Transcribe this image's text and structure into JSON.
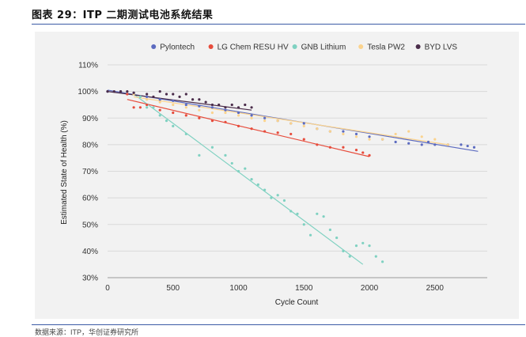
{
  "header": {
    "title": "图表 29：ITP 二期测试电池系统结果",
    "source": "数据来源：ITP，华创证券研究所"
  },
  "chart_data": {
    "type": "scatter",
    "title": "",
    "xlabel": "Cycle Count",
    "ylabel": "Estimated State of Health (%)",
    "xlim": [
      0,
      2900
    ],
    "ylim": [
      30,
      110
    ],
    "x_ticks": [
      0,
      500,
      1000,
      1500,
      2000,
      2500
    ],
    "y_ticks": [
      30,
      40,
      50,
      60,
      70,
      80,
      90,
      100,
      110
    ],
    "y_tick_labels": [
      "30%",
      "40%",
      "50%",
      "60%",
      "70%",
      "80%",
      "90%",
      "100%",
      "110%"
    ],
    "grid": "horizontal",
    "legend": "top",
    "series": [
      {
        "name": "Pylontech",
        "color": "#5c6bc0",
        "points": [
          [
            0,
            100
          ],
          [
            100,
            100
          ],
          [
            200,
            99.5
          ],
          [
            300,
            98
          ],
          [
            400,
            97
          ],
          [
            500,
            96.5
          ],
          [
            600,
            95
          ],
          [
            700,
            94.5
          ],
          [
            800,
            94
          ],
          [
            900,
            93
          ],
          [
            1000,
            92
          ],
          [
            1100,
            91
          ],
          [
            1200,
            90
          ],
          [
            1300,
            89
          ],
          [
            1400,
            88
          ],
          [
            1500,
            88
          ],
          [
            1600,
            86
          ],
          [
            1700,
            85
          ],
          [
            1800,
            85
          ],
          [
            1900,
            84
          ],
          [
            2000,
            83
          ],
          [
            2100,
            82
          ],
          [
            2200,
            81
          ],
          [
            2300,
            80.5
          ],
          [
            2400,
            80
          ],
          [
            2450,
            81
          ],
          [
            2500,
            80
          ],
          [
            2600,
            80
          ],
          [
            2700,
            80
          ],
          [
            2750,
            79.5
          ],
          [
            2800,
            79
          ]
        ],
        "trend": [
          [
            0,
            100.5
          ],
          [
            2830,
            77.5
          ]
        ]
      },
      {
        "name": "LG Chem RESU HV",
        "color": "#e74c3c",
        "points": [
          [
            150,
            99
          ],
          [
            200,
            94
          ],
          [
            250,
            94
          ],
          [
            300,
            95
          ],
          [
            400,
            93
          ],
          [
            500,
            92
          ],
          [
            600,
            91
          ],
          [
            700,
            90
          ],
          [
            800,
            89
          ],
          [
            900,
            88.5
          ],
          [
            1000,
            87
          ],
          [
            1100,
            86
          ],
          [
            1200,
            85
          ],
          [
            1300,
            84.5
          ],
          [
            1400,
            84
          ],
          [
            1500,
            82
          ],
          [
            1600,
            80
          ],
          [
            1700,
            79
          ],
          [
            1800,
            79
          ],
          [
            1900,
            78
          ],
          [
            1950,
            77
          ],
          [
            2000,
            76
          ]
        ],
        "trend": [
          [
            150,
            97
          ],
          [
            2000,
            75.5
          ]
        ]
      },
      {
        "name": "GNB Lithium",
        "color": "#7fd1c1",
        "points": [
          [
            200,
            99
          ],
          [
            250,
            98
          ],
          [
            300,
            94
          ],
          [
            350,
            94
          ],
          [
            400,
            91
          ],
          [
            450,
            89
          ],
          [
            500,
            87
          ],
          [
            600,
            84
          ],
          [
            700,
            76
          ],
          [
            800,
            79
          ],
          [
            900,
            76
          ],
          [
            950,
            73
          ],
          [
            1000,
            70
          ],
          [
            1050,
            71
          ],
          [
            1100,
            67
          ],
          [
            1150,
            65
          ],
          [
            1200,
            63
          ],
          [
            1250,
            60
          ],
          [
            1300,
            61
          ],
          [
            1350,
            59
          ],
          [
            1400,
            55
          ],
          [
            1450,
            54
          ],
          [
            1500,
            50
          ],
          [
            1550,
            46
          ],
          [
            1600,
            54
          ],
          [
            1650,
            53
          ],
          [
            1700,
            48
          ],
          [
            1750,
            45
          ],
          [
            1800,
            40
          ],
          [
            1850,
            38
          ],
          [
            1900,
            42
          ],
          [
            1950,
            43
          ],
          [
            2000,
            42
          ],
          [
            2050,
            38
          ],
          [
            2100,
            36
          ]
        ],
        "trend": [
          [
            200,
            99
          ],
          [
            1950,
            35
          ]
        ]
      },
      {
        "name": "Tesla PW2",
        "color": "#fbd38d",
        "points": [
          [
            200,
            99
          ],
          [
            300,
            97
          ],
          [
            400,
            96
          ],
          [
            500,
            95
          ],
          [
            600,
            94
          ],
          [
            700,
            93
          ],
          [
            800,
            92
          ],
          [
            900,
            92
          ],
          [
            1000,
            91
          ],
          [
            1100,
            90
          ],
          [
            1200,
            89
          ],
          [
            1300,
            89
          ],
          [
            1400,
            88
          ],
          [
            1500,
            87
          ],
          [
            1600,
            86
          ],
          [
            1700,
            85
          ],
          [
            1800,
            84
          ],
          [
            1900,
            83
          ],
          [
            2000,
            82
          ],
          [
            2100,
            82
          ],
          [
            2200,
            84
          ],
          [
            2300,
            85
          ],
          [
            2400,
            83
          ],
          [
            2500,
            82
          ],
          [
            2600,
            80
          ]
        ],
        "trend": [
          [
            200,
            98
          ],
          [
            2600,
            80
          ]
        ]
      },
      {
        "name": "BYD LVS",
        "color": "#4a2c4a",
        "points": [
          [
            0,
            100
          ],
          [
            50,
            100
          ],
          [
            100,
            100
          ],
          [
            150,
            100
          ],
          [
            200,
            99.5
          ],
          [
            300,
            99
          ],
          [
            350,
            98
          ],
          [
            400,
            100
          ],
          [
            450,
            99
          ],
          [
            500,
            99
          ],
          [
            550,
            98
          ],
          [
            600,
            99
          ],
          [
            650,
            97
          ],
          [
            700,
            97
          ],
          [
            750,
            96
          ],
          [
            800,
            95
          ],
          [
            850,
            95
          ],
          [
            900,
            94
          ],
          [
            950,
            95
          ],
          [
            1000,
            94
          ],
          [
            1050,
            95
          ],
          [
            1100,
            94
          ]
        ],
        "trend": [
          [
            0,
            100
          ],
          [
            1100,
            93
          ]
        ]
      }
    ]
  }
}
